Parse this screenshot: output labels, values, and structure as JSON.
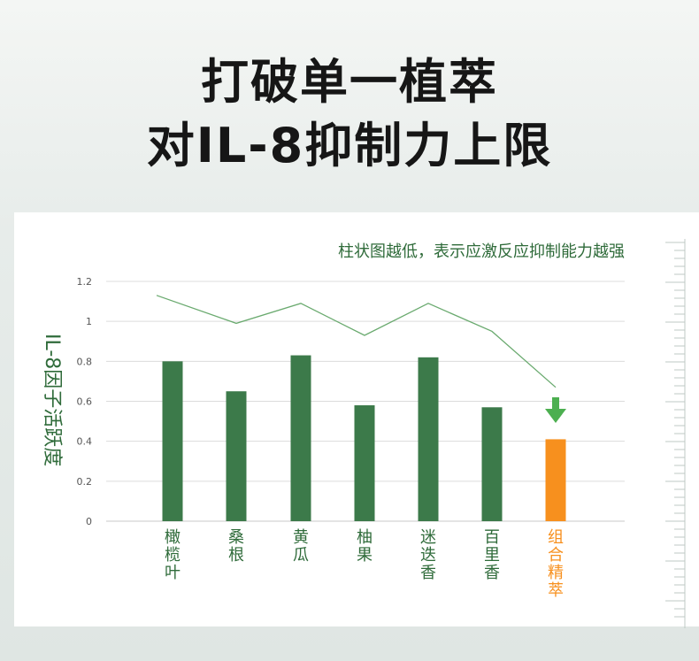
{
  "headline": {
    "line1": "打破单一植萃",
    "line2": "对IL-8抑制力上限"
  },
  "chart_data": {
    "type": "bar",
    "note": "柱状图越低，表示应激反应抑制能力越强",
    "ylabel": "IL-8因子活跃度",
    "xlabel": "",
    "ylim": [
      0,
      1.2
    ],
    "yticks": [
      0,
      0.2,
      0.4,
      0.6,
      0.8,
      1,
      1.2
    ],
    "ytick_labels": [
      "0",
      "0.2",
      "0.4",
      "0.6",
      "0.8",
      "1",
      "1.2"
    ],
    "categories": [
      "橄榄叶",
      "桑根",
      "黄瓜",
      "柚果",
      "迷迭香",
      "百里香",
      "组合精萃"
    ],
    "series": [
      {
        "values": [
          0.8,
          0.65,
          0.83,
          0.58,
          0.82,
          0.57,
          0.41
        ]
      }
    ],
    "trend_line": [
      1.13,
      0.99,
      1.09,
      0.93,
      1.09,
      0.95,
      0.67
    ],
    "grid": true,
    "colors": {
      "bar": "#3c7a4a",
      "highlight_bar": "#f7901e",
      "trend": "#6aaa6f",
      "arrow": "#4caf50",
      "axis_text": "#2f6b3a",
      "grid": "#dcdcdc"
    },
    "highlight_index": 6
  }
}
